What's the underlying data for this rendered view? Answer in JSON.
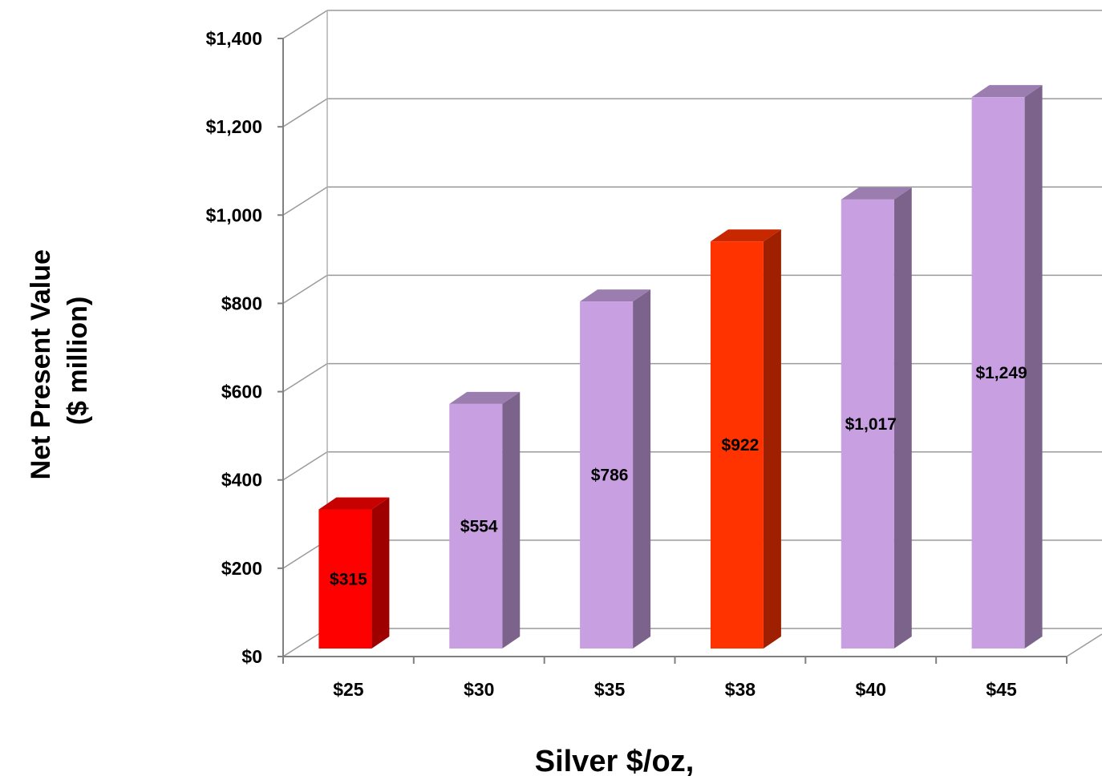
{
  "chart_data": {
    "type": "bar",
    "style": "3d-column",
    "categories": [
      "$25",
      "$30",
      "$35",
      "$38",
      "$40",
      "$45"
    ],
    "values": [
      315,
      554,
      786,
      922,
      1017,
      1249
    ],
    "data_labels": [
      "$315",
      "$554",
      "$786",
      "$922",
      "$1,017",
      "$1,249"
    ],
    "bar_colors": [
      "#ff0000",
      "#c8a0e2",
      "#c8a0e2",
      "#ff3300",
      "#c8a0e2",
      "#c8a0e2"
    ],
    "ylabel_lines": [
      "Net Present Value",
      "($ million)"
    ],
    "xlabel": "Silver $/oz,",
    "ylim": [
      0,
      1400
    ],
    "y_ticks": [
      0,
      200,
      400,
      600,
      800,
      1000,
      1200,
      1400
    ],
    "y_tick_labels": [
      "$0",
      "$200",
      "$400",
      "$600",
      "$800",
      "$1,000",
      "$1,200",
      "$1,400"
    ],
    "grid": true,
    "legend": "none"
  }
}
